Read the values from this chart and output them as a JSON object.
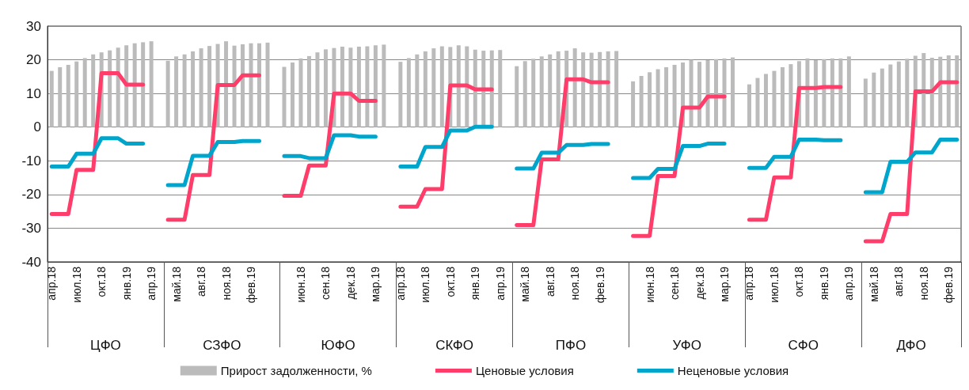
{
  "chart_data": {
    "type": "bar",
    "ylim": [
      -40,
      30
    ],
    "yticks": [
      -40,
      -30,
      -20,
      -10,
      0,
      10,
      20,
      30
    ],
    "grid": "y",
    "legend": "bottom",
    "categories": [
      "апр.18",
      null,
      null,
      "июл.18",
      null,
      null,
      "окт.18",
      null,
      null,
      "янв.19",
      null,
      null,
      "апр.19",
      null,
      null,
      "май.18",
      null,
      null,
      "авг.18",
      null,
      null,
      "ноя.18",
      null,
      null,
      "фев.19",
      null,
      null,
      null,
      null,
      null,
      "июн.18",
      null,
      null,
      "сен.18",
      null,
      null,
      "дек.18",
      null,
      null,
      "мар.19",
      null,
      null,
      "апр.18",
      null,
      null,
      "июл.18",
      null,
      null,
      "окт.18",
      null,
      null,
      "янв.19",
      null,
      null,
      "апр.19",
      null,
      null,
      "май.18",
      null,
      null,
      "авг.18",
      null,
      null,
      "ноя.18",
      null,
      null,
      "фев.19",
      null,
      null,
      null,
      null,
      null,
      "июн.18",
      null,
      null,
      "сен.18",
      null,
      null,
      "дек.18",
      null,
      null,
      "мар.19",
      null,
      null,
      "апр.18",
      null,
      null,
      "июл.18",
      null,
      null,
      "окт.18",
      null,
      null,
      "янв.19",
      null,
      null,
      "апр.19",
      null,
      null,
      "май.18",
      null,
      null,
      "авг.18",
      null,
      null,
      "ноя.18",
      null,
      null,
      "фев.19",
      null
    ],
    "annotations": [
      "ЦФО",
      "СЗФО",
      "ЮФО",
      "СКФО",
      "ПФО",
      "УФО",
      "СФО",
      "ДФО"
    ],
    "series": [
      {
        "name": "Прирост задолженности, %",
        "color": "#bbbbbb",
        "values": [
          16.7,
          17.8,
          18.5,
          19.5,
          20.5,
          21.6,
          22.2,
          22.8,
          23.6,
          24.3,
          24.9,
          25.2,
          25.5,
          null,
          19.7,
          21.0,
          21.6,
          22.5,
          23.4,
          24.1,
          24.7,
          25.5,
          24.2,
          24.6,
          24.9,
          24.9,
          25.1,
          null,
          17.9,
          19.2,
          20.4,
          21.1,
          22.2,
          23.1,
          23.5,
          23.9,
          23.6,
          23.9,
          24.0,
          24.3,
          24.5,
          null,
          19.4,
          20.5,
          21.6,
          22.5,
          23.4,
          24.0,
          23.8,
          24.3,
          24.0,
          23.0,
          22.7,
          22.8,
          22.9,
          null,
          18.1,
          19.6,
          20.3,
          21.0,
          21.6,
          22.5,
          22.7,
          23.4,
          22.2,
          22.1,
          22.3,
          22.5,
          22.6,
          null,
          13.6,
          15.2,
          16.3,
          17.2,
          17.8,
          18.5,
          19.2,
          20.0,
          19.4,
          19.9,
          20.2,
          20.4,
          20.7,
          null,
          12.7,
          14.6,
          15.8,
          16.7,
          17.8,
          18.7,
          19.6,
          20.4,
          19.9,
          20.2,
          20.4,
          20.4,
          21.0,
          null,
          14.4,
          16.2,
          17.4,
          18.6,
          19.5,
          20.3,
          21.2,
          22.0,
          20.6,
          20.9,
          21.3,
          21.3
        ]
      },
      {
        "name": "Ценовые условия",
        "type": "line",
        "color": "#ff3d6a",
        "values": [
          -25.8,
          -25.8,
          -25.8,
          -12.7,
          -12.7,
          -12.7,
          16.0,
          16.0,
          16.0,
          12.6,
          12.6,
          12.6,
          null,
          null,
          -27.5,
          -27.5,
          -27.5,
          -14.2,
          -14.2,
          -14.2,
          12.5,
          12.5,
          12.5,
          15.4,
          15.4,
          15.4,
          null,
          null,
          -20.4,
          -20.4,
          -20.4,
          -11.4,
          -11.4,
          -11.4,
          10.0,
          10.0,
          10.0,
          7.8,
          7.8,
          7.8,
          null,
          null,
          -23.6,
          -23.6,
          -23.6,
          -18.4,
          -18.4,
          -18.4,
          12.4,
          12.4,
          12.4,
          11.2,
          11.2,
          11.2,
          null,
          null,
          -29.1,
          -29.1,
          -29.1,
          -9.6,
          -9.6,
          -9.6,
          14.2,
          14.2,
          14.2,
          13.3,
          13.3,
          13.3,
          null,
          null,
          -32.3,
          -32.3,
          -32.3,
          -14.5,
          -14.5,
          -14.5,
          5.8,
          5.8,
          5.8,
          9.1,
          9.1,
          9.1,
          null,
          null,
          -27.5,
          -27.5,
          -27.5,
          -14.9,
          -14.9,
          -14.9,
          11.6,
          11.6,
          11.6,
          11.9,
          11.9,
          11.9,
          null,
          null,
          -33.9,
          -33.9,
          -33.9,
          -25.8,
          -25.8,
          -25.8,
          10.6,
          10.6,
          10.6,
          13.3,
          13.3,
          13.3
        ]
      },
      {
        "name": "Неценовые условия",
        "type": "line",
        "color": "#00a5cc",
        "values": [
          -11.7,
          -11.7,
          -11.7,
          -7.9,
          -7.9,
          -7.9,
          -3.3,
          -3.3,
          -3.3,
          -4.9,
          -4.9,
          -4.9,
          null,
          null,
          -17.2,
          -17.2,
          -17.2,
          -8.5,
          -8.5,
          -8.5,
          -4.4,
          -4.4,
          -4.4,
          -4.1,
          -4.1,
          -4.1,
          null,
          null,
          -8.6,
          -8.6,
          -8.6,
          -9.2,
          -9.2,
          -9.2,
          -2.4,
          -2.4,
          -2.4,
          -2.8,
          -2.8,
          -2.8,
          null,
          null,
          -11.7,
          -11.7,
          -11.7,
          -5.9,
          -5.9,
          -5.9,
          -1.0,
          -1.0,
          -1.0,
          0.1,
          0.1,
          0.1,
          null,
          null,
          -12.3,
          -12.3,
          -12.3,
          -7.6,
          -7.6,
          -7.6,
          -5.3,
          -5.3,
          -5.3,
          -5.0,
          -5.0,
          -5.0,
          null,
          null,
          -15.1,
          -15.1,
          -15.1,
          -12.4,
          -12.4,
          -12.4,
          -5.6,
          -5.6,
          -5.6,
          -4.9,
          -4.9,
          -4.9,
          null,
          null,
          -12.1,
          -12.1,
          -12.1,
          -8.8,
          -8.8,
          -8.8,
          -3.7,
          -3.7,
          -3.7,
          -3.9,
          -3.9,
          -3.9,
          null,
          null,
          -19.3,
          -19.3,
          -19.3,
          -10.3,
          -10.3,
          -10.3,
          -7.5,
          -7.5,
          -7.5,
          -3.7,
          -3.7,
          -3.7
        ]
      }
    ]
  }
}
